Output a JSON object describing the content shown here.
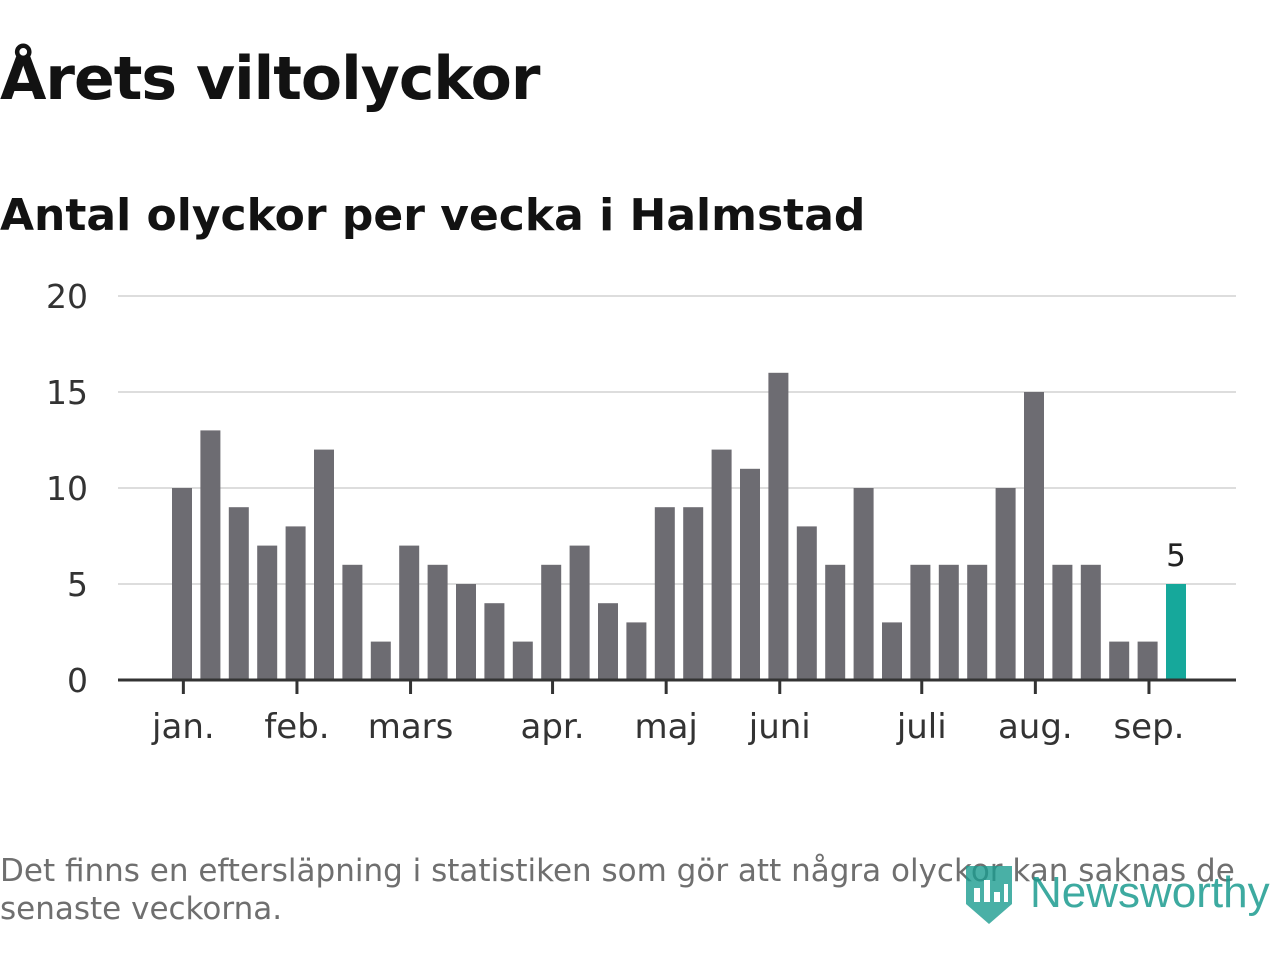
{
  "title": "Årets viltolyckor",
  "subtitle": "Antal olyckor per vecka i Halmstad",
  "footnote": "Det finns en eftersläpning i statistiken som gör att några olyckor kan saknas de senaste veckorna.",
  "brand": {
    "name": "Newsworthy",
    "icon": "bar-chart-badge-icon",
    "color": "#1c9c90"
  },
  "colors": {
    "bar": "#6d6c72",
    "highlight": "#16a89b",
    "grid": "#dddddd",
    "axis": "#333333"
  },
  "chart_data": {
    "type": "bar",
    "title": "",
    "xlabel": "",
    "ylabel": "",
    "ylim": [
      0,
      20
    ],
    "yticks": [
      0,
      5,
      10,
      15,
      20
    ],
    "grid": true,
    "values": [
      10,
      13,
      9,
      7,
      8,
      12,
      6,
      2,
      7,
      6,
      5,
      4,
      2,
      6,
      7,
      4,
      3,
      9,
      9,
      12,
      11,
      16,
      8,
      6,
      10,
      3,
      6,
      6,
      6,
      10,
      15,
      6,
      6,
      2,
      2,
      5
    ],
    "highlight_index": 35,
    "highlight_label": "5",
    "month_labels": [
      {
        "label": "jan.",
        "week": 0.4
      },
      {
        "label": "feb.",
        "week": 4.4
      },
      {
        "label": "mars",
        "week": 8.4
      },
      {
        "label": "apr.",
        "week": 13.4
      },
      {
        "label": "maj",
        "week": 17.4
      },
      {
        "label": "juni",
        "week": 21.4
      },
      {
        "label": "juli",
        "week": 26.4
      },
      {
        "label": "aug.",
        "week": 30.4
      },
      {
        "label": "sep.",
        "week": 34.4
      }
    ]
  }
}
